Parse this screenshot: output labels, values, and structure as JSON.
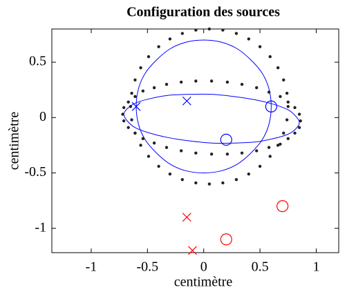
{
  "chart_data": {
    "type": "line",
    "title": "Configuration des sources",
    "xlabel": "centimètre",
    "ylabel": "centimètre",
    "xlim": [
      -1.35,
      1.2
    ],
    "ylim": [
      -1.22,
      0.8
    ],
    "xticks": [
      -1,
      -0.5,
      0,
      0.5,
      1
    ],
    "yticks": [
      -1,
      -0.5,
      0,
      0.5
    ],
    "grid": false,
    "series": [
      {
        "color": "#0000ff",
        "style": "line",
        "closed": true,
        "x": [
          0.6,
          0.58,
          0.52,
          0.42,
          0.3,
          0.16,
          0,
          -0.16,
          -0.3,
          -0.42,
          -0.52,
          -0.58,
          -0.6,
          -0.58,
          -0.52,
          -0.42,
          -0.3,
          -0.16,
          0,
          0.16,
          0.3,
          0.42,
          0.52,
          0.58
        ],
        "y": [
          0.1,
          0.26,
          0.4,
          0.52,
          0.62,
          0.68,
          0.7,
          0.68,
          0.62,
          0.52,
          0.4,
          0.26,
          0.1,
          -0.06,
          -0.2,
          -0.32,
          -0.42,
          -0.48,
          -0.5,
          -0.48,
          -0.42,
          -0.32,
          -0.2,
          -0.06
        ]
      },
      {
        "color": "#0000ff",
        "style": "line",
        "closed": true,
        "x": [
          0.85,
          0.82,
          0.75,
          0.62,
          0.46,
          0.27,
          0.07,
          -0.13,
          -0.32,
          -0.48,
          -0.61,
          -0.68,
          -0.71,
          -0.68,
          -0.61,
          -0.48,
          -0.32,
          -0.13,
          0.07,
          0.27,
          0.46,
          0.62,
          0.75,
          0.82
        ],
        "y": [
          -0.045,
          0.01,
          0.07,
          0.12,
          0.16,
          0.19,
          0.21,
          0.21,
          0.2,
          0.17,
          0.13,
          0.08,
          0.03,
          -0.03,
          -0.09,
          -0.14,
          -0.18,
          -0.21,
          -0.23,
          -0.23,
          -0.22,
          -0.19,
          -0.15,
          -0.1
        ]
      },
      {
        "color": "#222222",
        "style": "dots",
        "x": [
          0.75,
          0.74,
          0.71,
          0.66,
          0.59,
          0.5,
          0.4,
          0.29,
          0.17,
          0.05,
          -0.07,
          -0.19,
          -0.3,
          -0.4,
          -0.49,
          -0.56,
          -0.61,
          -0.64,
          -0.65,
          -0.64,
          -0.61,
          -0.56,
          -0.49,
          -0.4,
          -0.3,
          -0.19,
          -0.07,
          0.05,
          0.17,
          0.29,
          0.4,
          0.5,
          0.59,
          0.66,
          0.71,
          0.74
        ],
        "y": [
          0.1,
          0.22,
          0.34,
          0.45,
          0.55,
          0.64,
          0.71,
          0.76,
          0.79,
          0.8,
          0.79,
          0.76,
          0.71,
          0.64,
          0.55,
          0.45,
          0.34,
          0.22,
          0.1,
          -0.02,
          -0.14,
          -0.25,
          -0.35,
          -0.44,
          -0.51,
          -0.56,
          -0.59,
          -0.6,
          -0.59,
          -0.56,
          -0.51,
          -0.44,
          -0.35,
          -0.25,
          -0.14,
          -0.02
        ]
      },
      {
        "color": "#222222",
        "style": "dots",
        "x": [
          0.86,
          0.85,
          0.81,
          0.75,
          0.68,
          0.58,
          0.47,
          0.34,
          0.21,
          0.07,
          -0.07,
          -0.2,
          -0.33,
          -0.44,
          -0.54,
          -0.61,
          -0.67,
          -0.71,
          -0.72,
          -0.71,
          -0.67,
          -0.61,
          -0.54,
          -0.44,
          -0.33,
          -0.2,
          -0.07,
          0.07,
          0.21,
          0.34,
          0.47,
          0.58,
          0.68,
          0.75,
          0.81,
          0.85
        ],
        "y": [
          -0.03,
          0.03,
          0.09,
          0.14,
          0.19,
          0.23,
          0.27,
          0.3,
          0.32,
          0.33,
          0.33,
          0.32,
          0.3,
          0.27,
          0.24,
          0.19,
          0.14,
          0.09,
          0.03,
          -0.03,
          -0.09,
          -0.14,
          -0.19,
          -0.23,
          -0.27,
          -0.3,
          -0.32,
          -0.33,
          -0.33,
          -0.32,
          -0.3,
          -0.27,
          -0.24,
          -0.19,
          -0.14,
          -0.09
        ]
      },
      {
        "color": "#0000ff",
        "style": "x",
        "x": [
          -0.6,
          -0.15
        ],
        "y": [
          0.1,
          0.15
        ]
      },
      {
        "color": "#0000ff",
        "style": "o",
        "x": [
          0.6,
          0.2
        ],
        "y": [
          0.1,
          -0.2
        ]
      },
      {
        "color": "#ff0000",
        "style": "x",
        "x": [
          -0.15,
          -0.1
        ],
        "y": [
          -0.9,
          -1.2
        ]
      },
      {
        "color": "#ff0000",
        "style": "o",
        "x": [
          0.2,
          0.7
        ],
        "y": [
          -1.1,
          -0.8
        ]
      }
    ]
  }
}
